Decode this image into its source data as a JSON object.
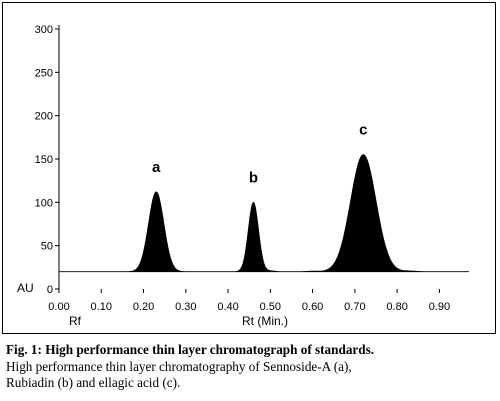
{
  "chart_data": {
    "type": "line",
    "title": "",
    "xlabel": "Rt (Min.)",
    "ylabel": "AU",
    "x_start_label": "Rf",
    "xlim": [
      0.0,
      0.97
    ],
    "ylim": [
      0,
      300
    ],
    "xticks": [
      "0.00",
      "0.10",
      "0.20",
      "0.30",
      "0.40",
      "0.50",
      "0.60",
      "0.70",
      "0.80",
      "0.90"
    ],
    "yticks": [
      "0",
      "50",
      "100",
      "150",
      "200",
      "250",
      "300"
    ],
    "grid": false,
    "legend": "none",
    "baseline": 20,
    "fill_color": "#000000",
    "peaks": [
      {
        "label": "a",
        "rt": 0.23,
        "height": 112
      },
      {
        "label": "b",
        "rt": 0.46,
        "height": 100
      },
      {
        "label": "c",
        "rt": 0.72,
        "height": 155
      }
    ]
  },
  "caption": {
    "lead": "Fig. 1:",
    "line1_rest": " High performance thin layer chromatograph of standards.",
    "line2": "High performance thin layer chromatography of  Sennoside-A (a),",
    "line3": "Rubiadin (b) and ellagic acid (c)."
  }
}
